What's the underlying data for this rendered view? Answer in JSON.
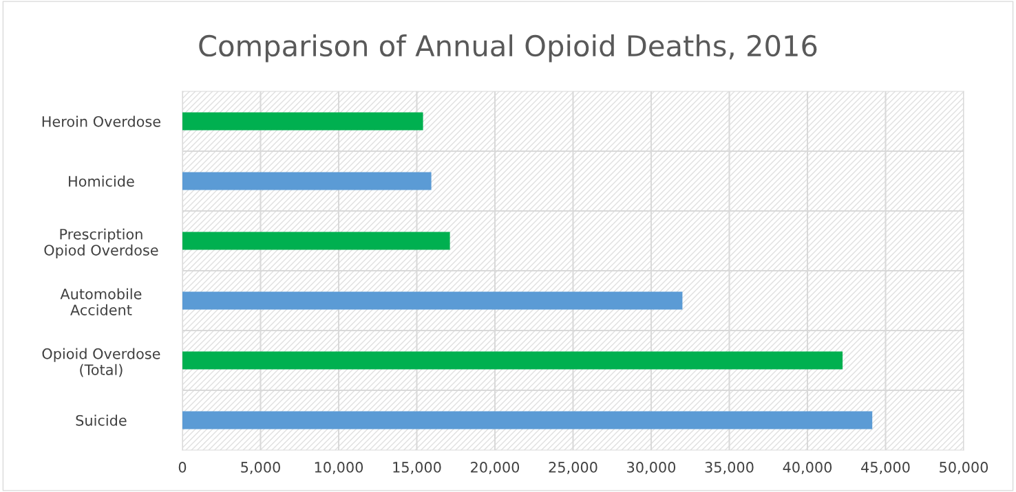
{
  "chart_data": {
    "type": "bar",
    "orientation": "horizontal",
    "title": "Comparison of Annual Opioid Deaths, 2016",
    "categories": [
      "Heroin Overdose",
      "Homicide",
      "Prescription\nOpiod Overdose",
      "Automobile\nAccident",
      "Opioid Overdose\n(Total)",
      "Suicide"
    ],
    "values": [
      15400,
      15930,
      17120,
      32000,
      42250,
      44150
    ],
    "colors": [
      "#00b050",
      "#5b9bd5",
      "#00b050",
      "#5b9bd5",
      "#00b050",
      "#5b9bd5"
    ],
    "xlim": [
      0,
      50000
    ],
    "xticks": [
      {
        "value": 0,
        "label": "0"
      },
      {
        "value": 5000,
        "label": "5,000"
      },
      {
        "value": 10000,
        "label": "10,000"
      },
      {
        "value": 15000,
        "label": "15,000"
      },
      {
        "value": 20000,
        "label": "20,000"
      },
      {
        "value": 25000,
        "label": "25,000"
      },
      {
        "value": 30000,
        "label": "30,000"
      },
      {
        "value": 35000,
        "label": "35,000"
      },
      {
        "value": 40000,
        "label": "40,000"
      },
      {
        "value": 45000,
        "label": "45,000"
      },
      {
        "value": 50000,
        "label": "50,000"
      }
    ],
    "grid": true
  }
}
